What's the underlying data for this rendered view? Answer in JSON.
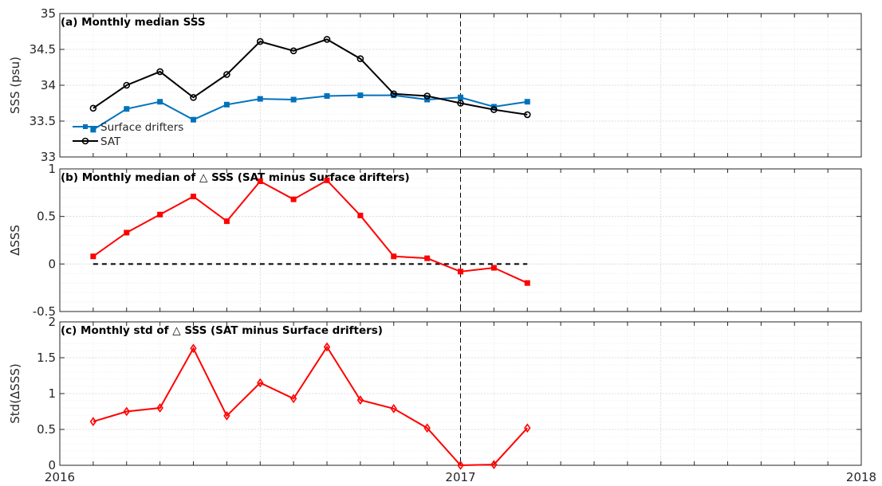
{
  "chart_data": [
    {
      "type": "line",
      "title": "(a) Monthly median SSS",
      "ylabel": "SSS (psu)",
      "ylim": [
        33,
        35
      ],
      "yticks": [
        33,
        33.5,
        34,
        34.5,
        35
      ],
      "ytick_labels": [
        "33",
        "33.5",
        "34",
        "34.5",
        "35"
      ],
      "xlim": [
        2016,
        2018
      ],
      "grid": true,
      "legend_position": "bottom-left",
      "series": [
        {
          "name": "Surface drifters",
          "color": "#0072BD",
          "marker": "square",
          "x": [
            2016.0833,
            2016.1667,
            2016.25,
            2016.3333,
            2016.4167,
            2016.5,
            2016.5833,
            2016.6667,
            2016.75,
            2016.8333,
            2016.9167,
            2017.0,
            2017.0833,
            2017.1667
          ],
          "y": [
            33.38,
            33.67,
            33.77,
            33.52,
            33.73,
            33.81,
            33.8,
            33.85,
            33.86,
            33.86,
            33.8,
            33.83,
            33.7,
            33.77
          ]
        },
        {
          "name": "SAT",
          "color": "#000000",
          "marker": "circle",
          "x": [
            2016.0833,
            2016.1667,
            2016.25,
            2016.3333,
            2016.4167,
            2016.5,
            2016.5833,
            2016.6667,
            2016.75,
            2016.8333,
            2016.9167,
            2017.0,
            2017.0833,
            2017.1667
          ],
          "y": [
            33.68,
            34.0,
            34.19,
            33.83,
            34.15,
            34.61,
            34.48,
            34.64,
            34.37,
            33.88,
            33.85,
            33.75,
            33.66,
            33.59
          ]
        }
      ]
    },
    {
      "type": "line",
      "title": "(b) Monthly median of △ SSS (SAT minus Surface drifters)",
      "ylabel": "ΔSSS",
      "ylim": [
        -0.5,
        1
      ],
      "yticks": [
        -0.5,
        0,
        0.5,
        1
      ],
      "ytick_labels": [
        "-0.5",
        "0",
        "0.5",
        "1"
      ],
      "xlim": [
        2016,
        2018
      ],
      "grid": true,
      "reference_line": {
        "y": 0,
        "x_from": 2016.0833,
        "x_to": 2017.1667,
        "style": "dashed",
        "color": "#000000"
      },
      "series": [
        {
          "color": "#FF0000",
          "marker": "square",
          "x": [
            2016.0833,
            2016.1667,
            2016.25,
            2016.3333,
            2016.4167,
            2016.5,
            2016.5833,
            2016.6667,
            2016.75,
            2016.8333,
            2016.9167,
            2017.0,
            2017.0833,
            2017.1667
          ],
          "y": [
            0.08,
            0.33,
            0.52,
            0.71,
            0.45,
            0.87,
            0.68,
            0.88,
            0.51,
            0.08,
            0.06,
            -0.08,
            -0.04,
            -0.2
          ]
        }
      ]
    },
    {
      "type": "line",
      "title": "(c) Monthly std of △ SSS (SAT minus Surface drifters)",
      "ylabel": "Std(ΔSSS)",
      "ylim": [
        0,
        2
      ],
      "yticks": [
        0,
        0.5,
        1,
        1.5,
        2
      ],
      "ytick_labels": [
        "0",
        "0.5",
        "1",
        "1.5",
        "2"
      ],
      "xlim": [
        2016,
        2018
      ],
      "xticks": [
        2016,
        2017,
        2018
      ],
      "xtick_labels": [
        "2016",
        "2017",
        "2018"
      ],
      "grid": true,
      "series": [
        {
          "color": "#FF0000",
          "marker": "diamond",
          "x": [
            2016.0833,
            2016.1667,
            2016.25,
            2016.3333,
            2016.4167,
            2016.5,
            2016.5833,
            2016.6667,
            2016.75,
            2016.8333,
            2016.9167,
            2017.0,
            2017.0833,
            2017.1667
          ],
          "y": [
            0.61,
            0.75,
            0.8,
            1.63,
            0.69,
            1.15,
            0.93,
            1.65,
            0.91,
            0.79,
            0.52,
            0.0,
            0.01,
            0.52
          ]
        }
      ]
    }
  ],
  "vertical_marker": {
    "x": 2017.0,
    "style": "dashed",
    "color": "#000000"
  }
}
